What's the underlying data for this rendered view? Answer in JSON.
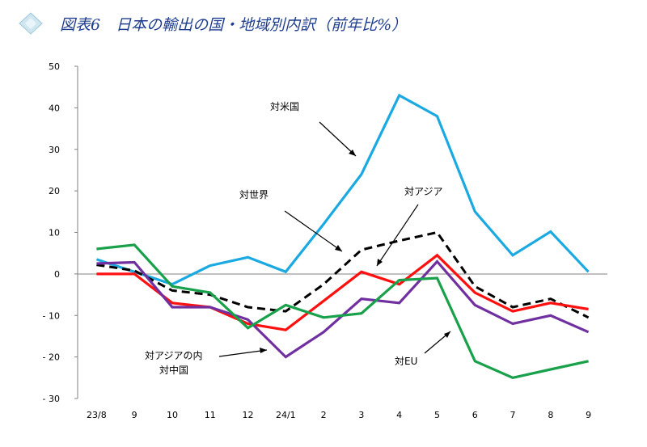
{
  "title": "図表6　日本の輸出の国・地域別内訳（前年比%）",
  "chart_data": {
    "type": "line",
    "title": "図表6　日本の輸出の国・地域別内訳（前年比%）",
    "categories": [
      "23/8",
      "9",
      "10",
      "11",
      "12",
      "24/1",
      "2",
      "3",
      "4",
      "5",
      "6",
      "7",
      "8",
      "9"
    ],
    "ylim": [
      -30,
      50
    ],
    "yticks": [
      50,
      40,
      30,
      20,
      10,
      0,
      -10,
      -20,
      -30
    ],
    "ytick_labels": [
      "50",
      "40",
      "30",
      "20",
      "10",
      "0",
      "- 10",
      "- 20",
      "- 30"
    ],
    "grid": false,
    "series": [
      {
        "name": "対米国",
        "color": "#1aa9e1",
        "dash": false,
        "values": [
          3.5,
          0.5,
          -2.5,
          2.0,
          4.0,
          0.5,
          12.0,
          24.0,
          43.0,
          38.0,
          15.0,
          4.5,
          10.2,
          0.5
        ]
      },
      {
        "name": "対世界",
        "color": "#000000",
        "dash": true,
        "values": [
          2.2,
          0.8,
          -4.0,
          -5.0,
          -8.0,
          -9.0,
          -2.5,
          5.8,
          8.0,
          10.0,
          -3.0,
          -8.0,
          -6.0,
          -10.5
        ]
      },
      {
        "name": "対アジア",
        "color": "#ff1010",
        "dash": false,
        "values": [
          0.0,
          0.0,
          -7.0,
          -8.0,
          -12.0,
          -13.5,
          -6.5,
          0.5,
          -2.5,
          4.5,
          -4.5,
          -9.0,
          -7.0,
          -8.5
        ]
      },
      {
        "name": "対アジアの内対中国",
        "color": "#7030a0",
        "dash": false,
        "values": [
          2.5,
          2.8,
          -8.0,
          -8.0,
          -11.0,
          -20.0,
          -14.0,
          -6.0,
          -7.0,
          3.0,
          -7.5,
          -12.0,
          -10.0,
          -14.0
        ]
      },
      {
        "name": "対EU",
        "color": "#18a04a",
        "dash": false,
        "values": [
          6.0,
          7.0,
          -3.0,
          -4.5,
          -13.0,
          -7.5,
          -10.5,
          -9.5,
          -1.5,
          -1.0,
          -21.0,
          -25.0,
          -23.0,
          -21.0
        ]
      }
    ],
    "annotations": [
      {
        "text": "対米国"
      },
      {
        "text": "対世界"
      },
      {
        "text": "対アジア"
      },
      {
        "text": "対アジアの内"
      },
      {
        "text": "対中国"
      },
      {
        "text": "対EU"
      }
    ]
  }
}
